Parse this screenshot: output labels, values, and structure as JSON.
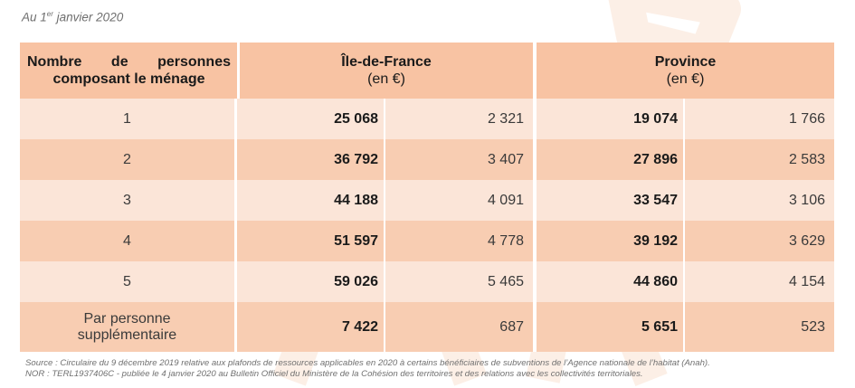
{
  "date_line": {
    "prefix": "Au 1",
    "superscript": "er",
    "suffix": " janvier 2020"
  },
  "header": {
    "first_col_line1": "Nombre de personnes",
    "first_col_line2": "composant le ménage",
    "regions": [
      {
        "name": "Île-de-France",
        "unit": "(en €)"
      },
      {
        "name": "Province",
        "unit": "(en €)"
      }
    ]
  },
  "rows": [
    {
      "label": "1",
      "idf_bold": "25 068",
      "idf": "2 321",
      "prov_bold": "19 074",
      "prov": "1 766"
    },
    {
      "label": "2",
      "idf_bold": "36 792",
      "idf": "3 407",
      "prov_bold": "27 896",
      "prov": "2 583"
    },
    {
      "label": "3",
      "idf_bold": "44 188",
      "idf": "4 091",
      "prov_bold": "33 547",
      "prov": "3 106"
    },
    {
      "label": "4",
      "idf_bold": "51 597",
      "idf": "4 778",
      "prov_bold": "39 192",
      "prov": "3 629"
    },
    {
      "label": "5",
      "idf_bold": "59 026",
      "idf": "5 465",
      "prov_bold": "44 860",
      "prov": "4 154"
    },
    {
      "label_line1": "Par personne",
      "label_line2": "supplémentaire",
      "idf_bold": "7 422",
      "idf": "687",
      "prov_bold": "5 651",
      "prov": "523"
    }
  ],
  "source": {
    "line1": "Source : Circulaire du 9 décembre 2019 relative aux plafonds de ressources applicables en 2020 à certains bénéficiaires de subventions de l’Agence nationale de l’habitat (Anah).",
    "line2": "NOR : TERL1937406C - publiée le 4 janvier 2020 au Bulletin Officiel du Ministère de la Cohésion des territoires et des relations avec les collectivités territoriales."
  },
  "colors": {
    "header_bg": "#f8c3a3",
    "row_light": "#fbe5d8",
    "row_dark": "#f8cdb2"
  }
}
